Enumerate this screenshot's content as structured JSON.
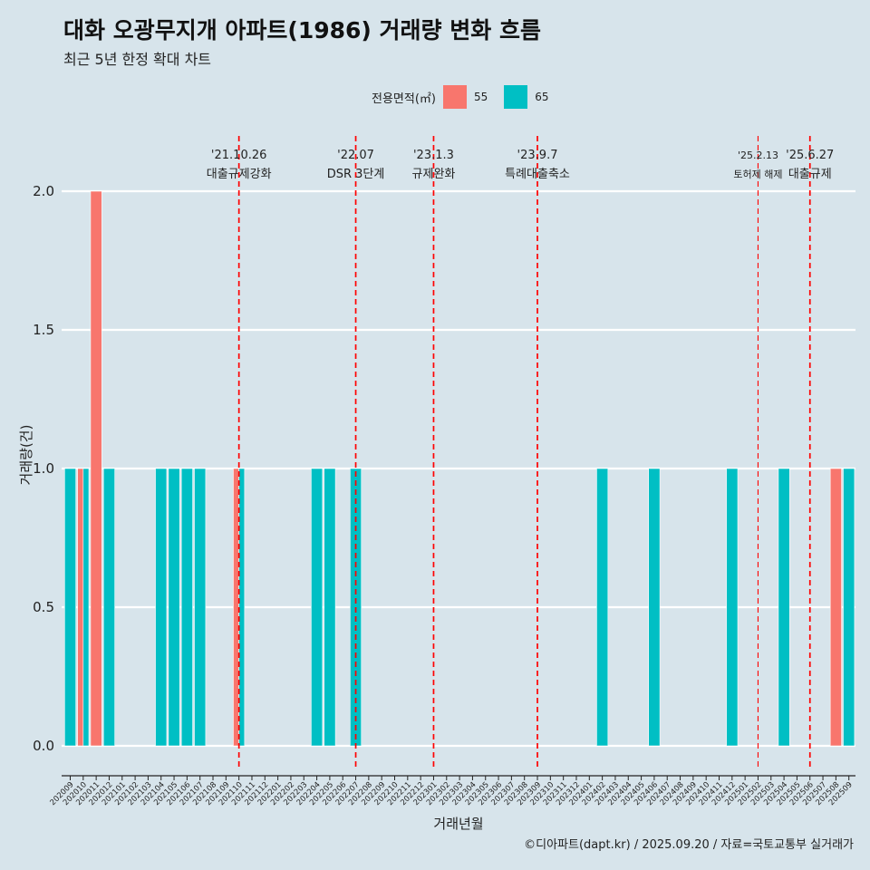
{
  "header": {
    "title": "대화 오광무지개 아파트(1986) 거래량 변화 흐름",
    "subtitle": "최근 5년 한정 확대 차트"
  },
  "legend": {
    "title": "전용면적(㎡)",
    "items": [
      {
        "label": "55",
        "color": "#f8766d"
      },
      {
        "label": "65",
        "color": "#00bfc4"
      }
    ]
  },
  "caption": "©디아파트(dapt.kr) / 2025.09.20 / 자료=국토교통부 실거래가",
  "chart_data": {
    "type": "bar",
    "xlabel": "거래년월",
    "ylabel": "거래량(건)",
    "ylim": [
      0,
      2.0
    ],
    "yticks": [
      "0.0",
      "0.5",
      "1.0",
      "1.5",
      "2.0"
    ],
    "grid": true,
    "legend_position": "top",
    "stacking": "dodge",
    "categories": [
      "202009",
      "202010",
      "202011",
      "202012",
      "202101",
      "202102",
      "202103",
      "202104",
      "202105",
      "202106",
      "202107",
      "202108",
      "202109",
      "202110",
      "202111",
      "202112",
      "202201",
      "202202",
      "202203",
      "202204",
      "202205",
      "202206",
      "202207",
      "202208",
      "202209",
      "202210",
      "202211",
      "202212",
      "202301",
      "202302",
      "202303",
      "202304",
      "202305",
      "202306",
      "202307",
      "202308",
      "202309",
      "202310",
      "202311",
      "202312",
      "202401",
      "202402",
      "202403",
      "202404",
      "202405",
      "202406",
      "202407",
      "202408",
      "202409",
      "202410",
      "202411",
      "202412",
      "202501",
      "202502",
      "202503",
      "202504",
      "202505",
      "202506",
      "202507",
      "202508",
      "202509"
    ],
    "bars": [
      {
        "category": "202009",
        "series": "65",
        "value": 1,
        "slot": "full"
      },
      {
        "category": "202010",
        "series": "55",
        "value": 1,
        "slot": "left"
      },
      {
        "category": "202010",
        "series": "65",
        "value": 1,
        "slot": "right"
      },
      {
        "category": "202011",
        "series": "55",
        "value": 2,
        "slot": "full"
      },
      {
        "category": "202012",
        "series": "65",
        "value": 1,
        "slot": "full"
      },
      {
        "category": "202104",
        "series": "65",
        "value": 1,
        "slot": "full"
      },
      {
        "category": "202105",
        "series": "65",
        "value": 1,
        "slot": "full"
      },
      {
        "category": "202106",
        "series": "65",
        "value": 1,
        "slot": "full"
      },
      {
        "category": "202107",
        "series": "65",
        "value": 1,
        "slot": "full"
      },
      {
        "category": "202110",
        "series": "55",
        "value": 1,
        "slot": "left"
      },
      {
        "category": "202110",
        "series": "65",
        "value": 1,
        "slot": "right"
      },
      {
        "category": "202204",
        "series": "65",
        "value": 1,
        "slot": "full"
      },
      {
        "category": "202205",
        "series": "65",
        "value": 1,
        "slot": "full"
      },
      {
        "category": "202207",
        "series": "65",
        "value": 1,
        "slot": "full"
      },
      {
        "category": "202402",
        "series": "65",
        "value": 1,
        "slot": "full"
      },
      {
        "category": "202406",
        "series": "65",
        "value": 1,
        "slot": "full"
      },
      {
        "category": "202412",
        "series": "65",
        "value": 1,
        "slot": "full"
      },
      {
        "category": "202504",
        "series": "65",
        "value": 1,
        "slot": "full"
      },
      {
        "category": "202508",
        "series": "55",
        "value": 1,
        "slot": "full"
      },
      {
        "category": "202509",
        "series": "65",
        "value": 1,
        "slot": "full"
      }
    ],
    "annotations": [
      {
        "category": "202110",
        "date": "'21.10.26",
        "text": "대출규제강화"
      },
      {
        "category": "202207",
        "date": "'22.07",
        "text": "DSR 3단계"
      },
      {
        "category": "202301",
        "date": "'23.1.3",
        "text": "규제완화"
      },
      {
        "category": "202309",
        "date": "'23.9.7",
        "text": "특례대출축소"
      },
      {
        "category": "202502",
        "date": "'25.2.13",
        "text": "토허제 해제"
      },
      {
        "category": "202506",
        "date": "'25.6.27",
        "text": "대출규제"
      }
    ]
  }
}
